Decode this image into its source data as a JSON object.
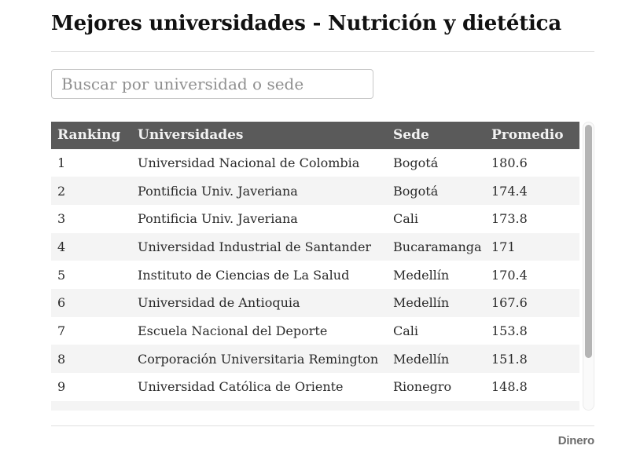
{
  "page": {
    "title": "Mejores universidades - Nutrición y dietética",
    "brand": "Dinero"
  },
  "search": {
    "placeholder": "Buscar por universidad o sede",
    "value": ""
  },
  "table": {
    "columns": [
      "Ranking",
      "Universidades",
      "Sede",
      "Promedio"
    ],
    "rows": [
      {
        "ranking": "1",
        "universidad": "Universidad Nacional de Colombia",
        "sede": "Bogotá",
        "promedio": "180.6"
      },
      {
        "ranking": "2",
        "universidad": "Pontificia Univ. Javeriana",
        "sede": "Bogotá",
        "promedio": "174.4"
      },
      {
        "ranking": "3",
        "universidad": "Pontificia Univ. Javeriana",
        "sede": "Cali",
        "promedio": "173.8"
      },
      {
        "ranking": "4",
        "universidad": "Universidad Industrial de Santander",
        "sede": "Bucaramanga",
        "promedio": "171"
      },
      {
        "ranking": "5",
        "universidad": "Instituto de Ciencias de La Salud",
        "sede": "Medellín",
        "promedio": "170.4"
      },
      {
        "ranking": "6",
        "universidad": "Universidad de Antioquia",
        "sede": "Medellín",
        "promedio": "167.6"
      },
      {
        "ranking": "7",
        "universidad": "Escuela Nacional del Deporte",
        "sede": "Cali",
        "promedio": "153.8"
      },
      {
        "ranking": "8",
        "universidad": "Corporación Universitaria Remington",
        "sede": "Medellín",
        "promedio": "151.8"
      },
      {
        "ranking": "9",
        "universidad": "Universidad Católica de Oriente",
        "sede": "Rionegro",
        "promedio": "148.8"
      }
    ]
  },
  "colors": {
    "table_header_bg": "#5a5a5a",
    "table_header_text": "#f2f2f2",
    "row_stripe": "#f4f4f4",
    "body_text": "#2a2a2a",
    "brand_text": "#6d6d6d"
  }
}
